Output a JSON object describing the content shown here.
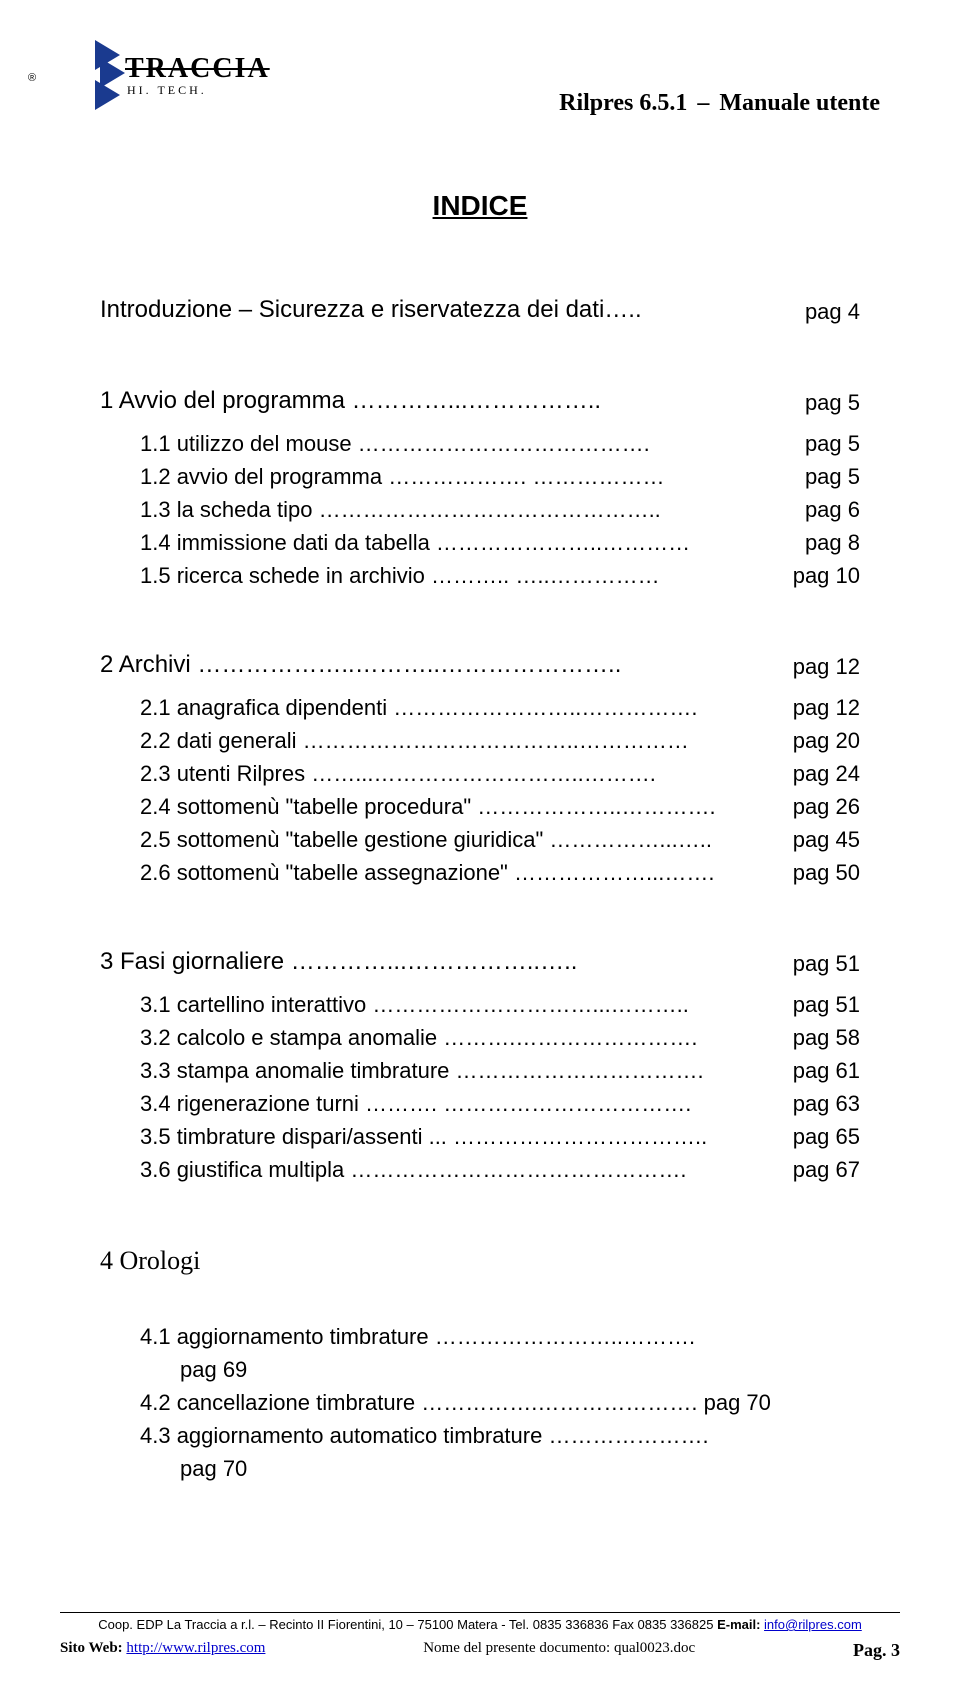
{
  "header": {
    "logo_text": "TRACCIA",
    "logo_sub": "HI. TECH.",
    "reg": "®",
    "doc_title_left": "Rilpres 6.5.1",
    "doc_title_right": "Manuale utente",
    "separator": "–"
  },
  "heading": "INDICE",
  "intro": {
    "label": "Introduzione – Sicurezza e riservatezza dei dati…..",
    "pg": "pag 4"
  },
  "chapters": [
    {
      "title": "1 Avvio del programma …………...……………..",
      "pg": "pag 5",
      "subs": [
        {
          "label": "1.1 utilizzo del mouse ………………………………….",
          "pg": "pag 5"
        },
        {
          "label": "1.2 avvio del programma ………………. ………………",
          "pg": "pag 5"
        },
        {
          "label": "1.3 la scheda tipo ………………………………………..",
          "pg": "pag 6"
        },
        {
          "label": "1.4 immissione dati da tabella …………………..…………",
          "pg": "pag 8"
        },
        {
          "label": "1.5 ricerca schede in archivio ……….. …..……………",
          "pg": "pag 10"
        }
      ]
    },
    {
      "title": "2 Archivi ………………..………..…………………..",
      "pg": "pag 12",
      "subs": [
        {
          "label": "2.1 anagrafica dipendenti ……………………..…………….",
          "pg": "pag 12"
        },
        {
          "label": "2.2 dati generali ………………………………..……………",
          "pg": "pag 20"
        },
        {
          "label": "2.3 utenti Rilpres ……...………………………..……….",
          "pg": "pag 24"
        },
        {
          "label": "2.4 sottomenù \"tabelle procedura\" ………………..………….",
          "pg": "pag 26"
        },
        {
          "label": "2.5 sottomenù \"tabelle gestione giuridica\" ……………...…..",
          "pg": "pag 45"
        },
        {
          "label": "2.6 sottomenù \"tabelle assegnazione\" ………………...…….",
          "pg": "pag 50"
        }
      ]
    },
    {
      "title": "3 Fasi giornaliere   …………...……………..…..",
      "pg": "pag 51",
      "subs": [
        {
          "label": "3.1 cartellino interattivo …………………………...………..",
          "pg": "pag 51"
        },
        {
          "label": "3.2 calcolo e stampa anomalie ……….…………………….",
          "pg": "pag 58"
        },
        {
          "label": "3.3 stampa anomalie timbrature …………………………….",
          "pg": "pag 61"
        },
        {
          "label": "3.4 rigenerazione turni ………. …………………………….",
          "pg": "pag 63"
        },
        {
          "label": "3.5 timbrature dispari/assenti ... ……………………………..",
          "pg": "pag 65"
        },
        {
          "label": "3.6 giustifica multipla ……………………………………….",
          "pg": "pag 67"
        }
      ]
    }
  ],
  "chapter4": {
    "title": "4 Orologi",
    "subs": [
      {
        "line1": "4.1 aggiornamento timbrature ……………………..……….",
        "line2": "pag 69"
      },
      {
        "full": "4.2 cancellazione timbrature …………….…………………. pag 70"
      },
      {
        "line1": "4.3 aggiornamento automatico timbrature ………………….",
        "line2": "pag 70"
      }
    ]
  },
  "footer": {
    "line1_a": "Coop. EDP La Traccia a r.l. – Recinto II Fiorentini, 10 – 75100 Matera - Tel. 0835 336836 Fax 0835 336825 ",
    "line1_b": "E-mail:",
    "line1_email": "info@rilpres.com",
    "sito_label": "Sito Web: ",
    "sito_url": "http://www.rilpres.com",
    "doc_label": "Nome del presente documento: ",
    "doc_name": "qual0023.doc",
    "pag_label": "Pag. ",
    "pag_num": "3"
  },
  "colors": {
    "logo_blue": "#1a3a8f",
    "link": "#0000cc",
    "text": "#000000",
    "background": "#ffffff"
  }
}
